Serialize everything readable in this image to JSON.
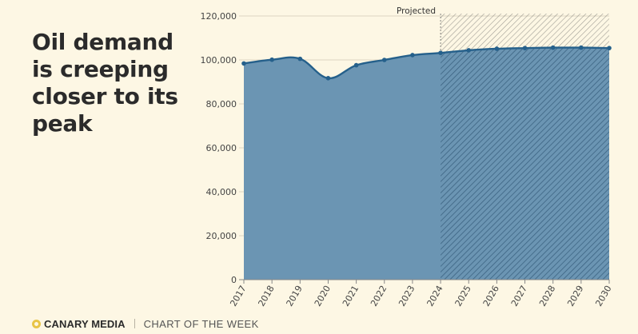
{
  "headline": "Oil demand is creeping closer to its peak",
  "footer": {
    "brand": "CANARY MEDIA",
    "divider": "|",
    "tagline": "CHART OF THE WEEK"
  },
  "colors": {
    "background": "#fdf7e4",
    "area": "#6b95b3",
    "line": "#25608b",
    "hatch": "#2c5372",
    "brand": "#e8c547"
  },
  "chart_data": {
    "type": "area",
    "title": "Oil demand is creeping closer to its peak",
    "xlabel": "",
    "ylabel": "",
    "x": [
      "2017",
      "2018",
      "2019",
      "2020",
      "2021",
      "2022",
      "2023",
      "2024",
      "2025",
      "2026",
      "2027",
      "2028",
      "2029",
      "2030"
    ],
    "values": [
      98400,
      100100,
      100500,
      91700,
      97600,
      100000,
      102200,
      103200,
      104400,
      105100,
      105400,
      105600,
      105600,
      105400
    ],
    "ylim": [
      0,
      120000
    ],
    "yticks": [
      0,
      20000,
      40000,
      60000,
      80000,
      100000,
      120000
    ],
    "ytick_labels": [
      "0",
      "20,000",
      "40,000",
      "60,000",
      "80,000",
      "100,000",
      "120,000"
    ],
    "projected_from": "2024",
    "projected_label": "Projected",
    "grid": true
  }
}
